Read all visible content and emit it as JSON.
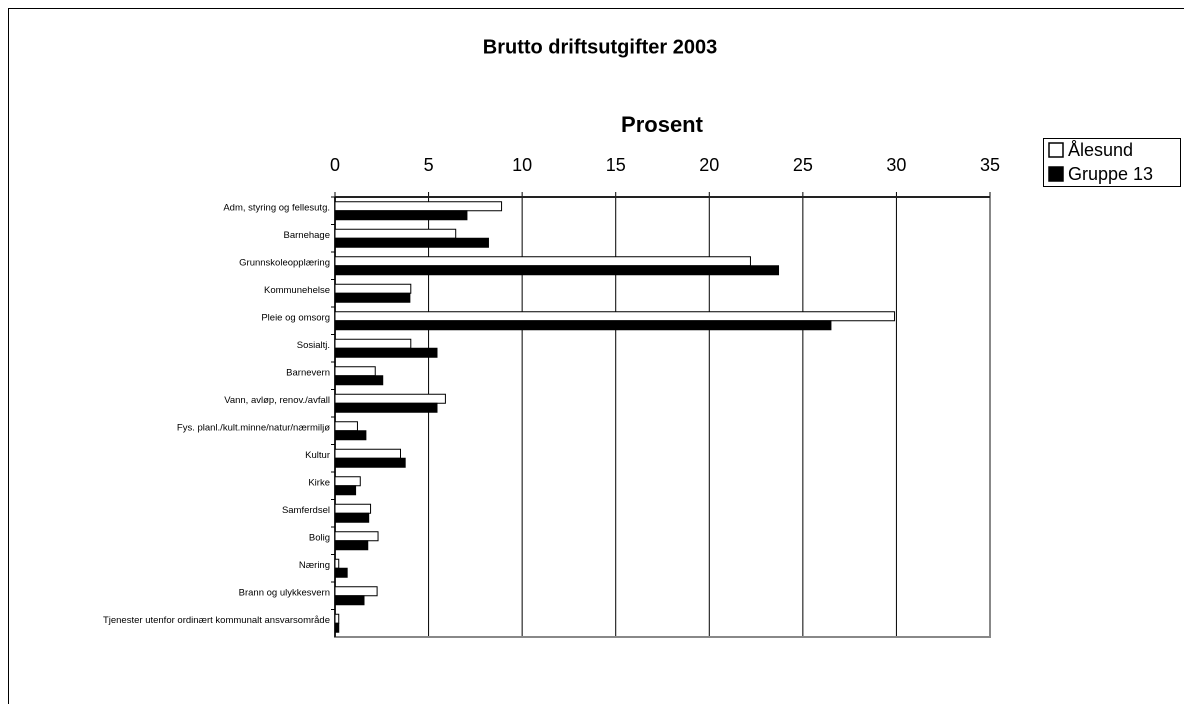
{
  "chart_data": {
    "type": "hbar",
    "title": "Brutto driftsutgifter 2003",
    "x_label": "Prosent",
    "categories": [
      "Adm, styring og fellesutg.",
      "Barnehage",
      "Grunnskoleopplæring",
      "Kommunehelse",
      "Pleie og omsorg",
      "Sosialtj.",
      "Barnevern",
      "Vann, avløp, renov./avfall",
      "Fys. planl./kult.minne/natur/nærmiljø",
      "Kultur",
      "Kirke",
      "Samferdsel",
      "Bolig",
      "Næring",
      "Brann og ulykkesvern",
      "Tjenester utenfor ordinært kommunalt ansvarsområde"
    ],
    "series": [
      {
        "name": "Ålesund",
        "color": "#ffffff",
        "values": [
          8.9,
          6.45,
          22.2,
          4.05,
          29.9,
          4.05,
          2.15,
          5.9,
          1.2,
          3.5,
          1.35,
          1.9,
          2.3,
          0.2,
          2.25,
          0.2
        ]
      },
      {
        "name": "Gruppe 13",
        "color": "#000000",
        "values": [
          7.05,
          8.2,
          23.7,
          4.0,
          26.5,
          5.45,
          2.55,
          5.45,
          1.65,
          3.75,
          1.1,
          1.8,
          1.75,
          0.65,
          1.55,
          0.2
        ]
      }
    ],
    "xlim": [
      0,
      35
    ],
    "xticks": [
      0,
      5,
      10,
      15,
      20,
      25,
      30,
      35
    ],
    "grid": true,
    "legend": "right"
  }
}
